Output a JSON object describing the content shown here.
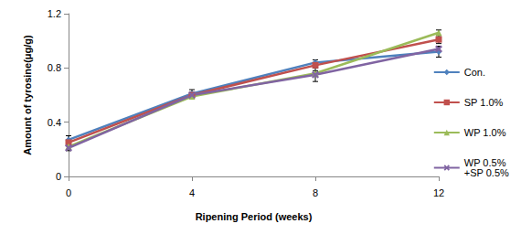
{
  "chart_data": {
    "type": "line",
    "x_label": "Ripening Period (weeks)",
    "y_label": "Amount of tyrosine(μg/g)",
    "categories": [
      "0",
      "4",
      "8",
      "12"
    ],
    "series": [
      {
        "name": "Con.",
        "color": "#4F81BD",
        "marker": "diamond",
        "values": [
          0.27,
          0.61,
          0.84,
          0.92
        ],
        "errors": [
          0.03,
          0.03,
          0.02,
          0.04
        ]
      },
      {
        "name": "SP 1.0%",
        "color": "#C0504D",
        "marker": "square",
        "values": [
          0.25,
          0.6,
          0.82,
          1.01
        ],
        "errors": [
          0.02,
          0.02,
          0.02,
          0.03
        ]
      },
      {
        "name": "WP 1.0%",
        "color": "#9BBB59",
        "marker": "triangle",
        "values": [
          0.22,
          0.59,
          0.76,
          1.06
        ],
        "errors": [
          0.02,
          0.02,
          0.02,
          0.02
        ]
      },
      {
        "name": "WP 0.5% +SP 0.5%",
        "color": "#8064A2",
        "marker": "x",
        "values": [
          0.21,
          0.6,
          0.75,
          0.94
        ],
        "errors": [
          0.02,
          0.02,
          0.05,
          0.02
        ]
      }
    ],
    "ylim": [
      0,
      1.2
    ],
    "yticks": [
      0,
      0.4,
      0.8,
      1.2
    ],
    "grid": false,
    "legend": "right"
  }
}
